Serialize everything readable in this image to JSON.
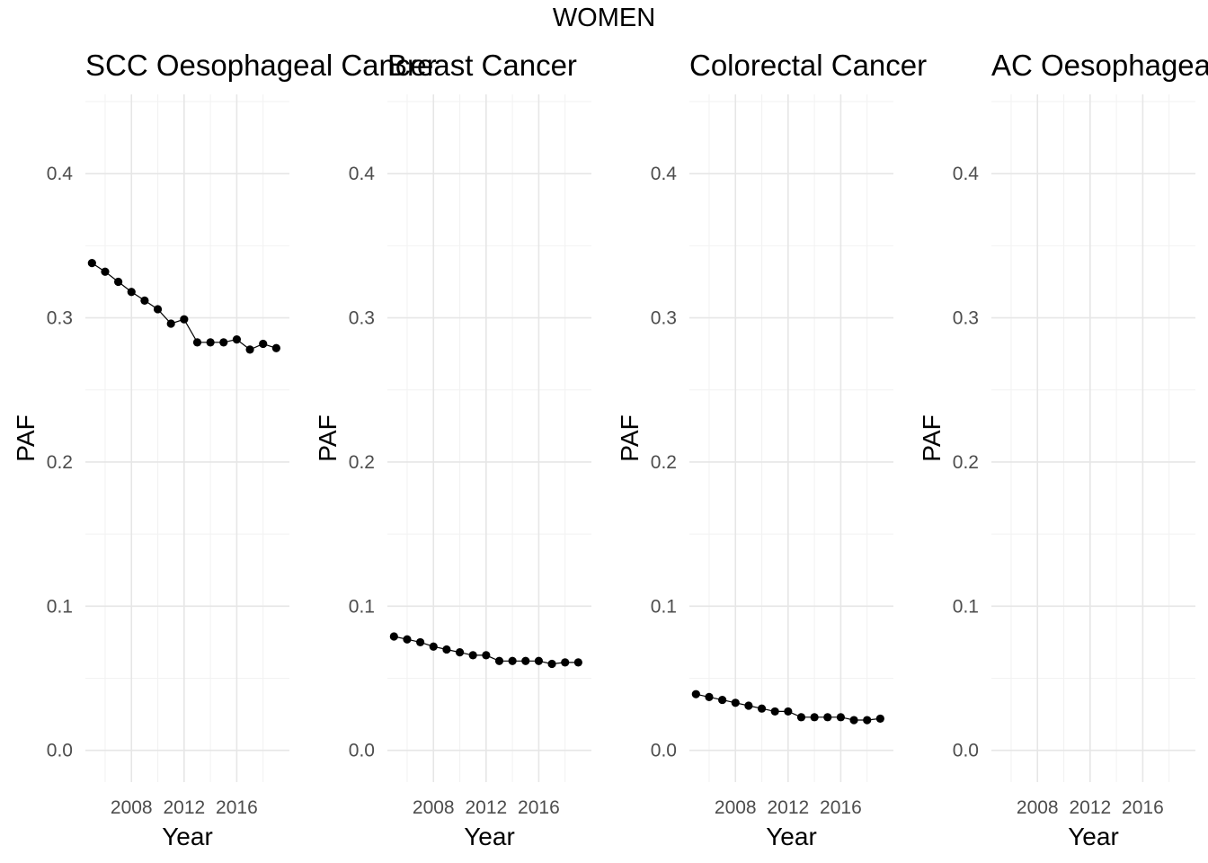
{
  "figure": {
    "title": "WOMEN"
  },
  "chart_data": [
    {
      "type": "line",
      "title": "SCC Oesophageal Cancer",
      "xlabel": "Year",
      "ylabel": "PAF",
      "x": [
        2005,
        2006,
        2007,
        2008,
        2009,
        2010,
        2011,
        2012,
        2013,
        2014,
        2015,
        2016,
        2017,
        2018,
        2019
      ],
      "y": [
        0.338,
        0.332,
        0.325,
        0.318,
        0.312,
        0.306,
        0.296,
        0.299,
        0.283,
        0.283,
        0.283,
        0.285,
        0.278,
        0.282,
        0.279
      ],
      "xticks": [
        "2008",
        "2012",
        "2016"
      ],
      "yticks": [
        "0.0",
        "0.1",
        "0.2",
        "0.3",
        "0.4"
      ],
      "xlim": [
        2004.5,
        2020.0
      ],
      "ylim": [
        -0.022,
        0.455
      ],
      "grid": true
    },
    {
      "type": "line",
      "title": "Breast Cancer",
      "xlabel": "Year",
      "ylabel": "PAF",
      "x": [
        2005,
        2006,
        2007,
        2008,
        2009,
        2010,
        2011,
        2012,
        2013,
        2014,
        2015,
        2016,
        2017,
        2018,
        2019
      ],
      "y": [
        0.079,
        0.077,
        0.075,
        0.072,
        0.07,
        0.068,
        0.066,
        0.066,
        0.062,
        0.062,
        0.062,
        0.062,
        0.06,
        0.061,
        0.061
      ],
      "xticks": [
        "2008",
        "2012",
        "2016"
      ],
      "yticks": [
        "0.0",
        "0.1",
        "0.2",
        "0.3",
        "0.4"
      ],
      "xlim": [
        2004.5,
        2020.0
      ],
      "ylim": [
        -0.022,
        0.455
      ],
      "grid": true
    },
    {
      "type": "line",
      "title": "Colorectal Cancer",
      "xlabel": "Year",
      "ylabel": "PAF",
      "x": [
        2005,
        2006,
        2007,
        2008,
        2009,
        2010,
        2011,
        2012,
        2013,
        2014,
        2015,
        2016,
        2017,
        2018,
        2019
      ],
      "y": [
        0.039,
        0.037,
        0.035,
        0.033,
        0.031,
        0.029,
        0.027,
        0.027,
        0.023,
        0.023,
        0.023,
        0.023,
        0.021,
        0.021,
        0.022
      ],
      "xticks": [
        "2008",
        "2012",
        "2016"
      ],
      "yticks": [
        "0.0",
        "0.1",
        "0.2",
        "0.3",
        "0.4"
      ],
      "xlim": [
        2004.5,
        2020.0
      ],
      "ylim": [
        -0.022,
        0.455
      ],
      "grid": true
    },
    {
      "type": "line",
      "title": "AC Oesophageal Cancer",
      "xlabel": "Year",
      "ylabel": "PAF",
      "x": [],
      "y": [],
      "xticks": [
        "2008",
        "2012",
        "2016"
      ],
      "yticks": [
        "0.0",
        "0.1",
        "0.2",
        "0.3",
        "0.4"
      ],
      "xlim": [
        2004.5,
        2020.0
      ],
      "ylim": [
        -0.022,
        0.455
      ],
      "grid": true
    }
  ]
}
